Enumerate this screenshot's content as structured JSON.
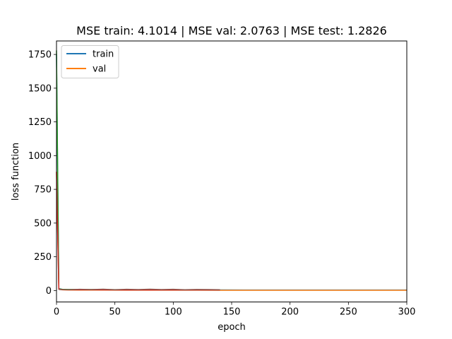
{
  "chart_data": {
    "type": "line",
    "title": "MSE train: 4.1014 | MSE val: 2.0763 | MSE test: 1.2826",
    "xlabel": "epoch",
    "ylabel": "loss function",
    "xlim": [
      0,
      300
    ],
    "ylim": [
      -85,
      1850
    ],
    "x_ticks": [
      0,
      50,
      100,
      150,
      200,
      250,
      300
    ],
    "y_ticks": [
      0,
      250,
      500,
      750,
      1000,
      1250,
      1500,
      1750
    ],
    "x_tick_labels": [
      "0",
      "50",
      "100",
      "150",
      "200",
      "250",
      "300"
    ],
    "y_tick_labels": [
      "0",
      "250",
      "500",
      "750",
      "1000",
      "1250",
      "1500",
      "1750"
    ],
    "grid": false,
    "legend": {
      "placement": "upper-left",
      "entries": [
        "train",
        "val"
      ]
    },
    "series": [
      {
        "name": "train",
        "color": "#1f77b4",
        "x": [
          0,
          1,
          2,
          5,
          10,
          20,
          40,
          60,
          80,
          100,
          120,
          140,
          160,
          200,
          250,
          300
        ],
        "y": [
          1750,
          850,
          15,
          8,
          7,
          6,
          5,
          5,
          5,
          4.5,
          4.3,
          4.2,
          4.1,
          4.1,
          4.1,
          4.1
        ]
      },
      {
        "name": "val",
        "color": "#ff7f0e",
        "x": [
          0,
          1,
          2,
          5,
          10,
          20,
          40,
          60,
          80,
          100,
          120,
          140,
          160,
          200,
          250,
          300
        ],
        "y": [
          880,
          450,
          10,
          5,
          4,
          3.5,
          3,
          2.8,
          2.6,
          2.4,
          2.3,
          2.2,
          2.1,
          2.08,
          2.08,
          2.08
        ]
      },
      {
        "color": "#2ca02c",
        "x": [
          0,
          1,
          2,
          5,
          10,
          30,
          60,
          90,
          120,
          140
        ],
        "y": [
          1780,
          900,
          12,
          9,
          8,
          7,
          6,
          6,
          5,
          5
        ]
      },
      {
        "color": "#d62728",
        "x": [
          0,
          1,
          2,
          5,
          10,
          30,
          60,
          90,
          120,
          140
        ],
        "y": [
          880,
          430,
          10,
          6,
          5,
          5,
          4,
          4,
          4,
          4
        ]
      },
      {
        "color": "#8c564b",
        "x": [
          2,
          10,
          20,
          30,
          40,
          50,
          60,
          70,
          80,
          90,
          100,
          110,
          120,
          130,
          140
        ],
        "y": [
          8,
          6,
          9,
          7,
          10,
          6,
          9,
          7,
          10,
          7,
          9,
          6,
          8,
          7,
          6
        ]
      }
    ]
  }
}
